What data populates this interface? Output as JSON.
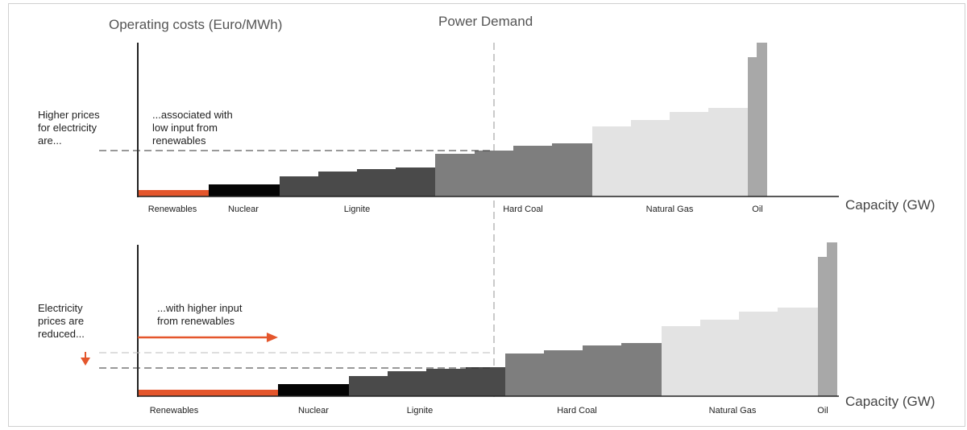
{
  "title_y_axis": "Operating costs (Euro/MWh)",
  "title_demand": "Power Demand",
  "x_axis_label": "Capacity (GW)",
  "colors": {
    "renewables": "#e4562c",
    "nuclear": "#050505",
    "lignite": "#4a4a4a",
    "hard_coal": "#7e7e7e",
    "natural_gas": "#e3e3e3",
    "oil": "#a8a8a8",
    "arrow": "#e4562c"
  },
  "top": {
    "side_note": [
      "Higher prices",
      "for electricity",
      "are..."
    ],
    "annotation": [
      "...associated with",
      "low input from",
      "renewables"
    ],
    "categories": [
      "Renewables",
      "Nuclear",
      "Lignite",
      "Hard Coal",
      "Natural Gas",
      "Oil"
    ]
  },
  "bottom": {
    "side_note": [
      "Electricity",
      "prices are",
      "reduced..."
    ],
    "annotation": [
      "...with higher input",
      "from renewables"
    ],
    "categories": [
      "Renewables",
      "Nuclear",
      "Lignite",
      "Hard Coal",
      "Natural Gas",
      "Oil"
    ]
  }
}
